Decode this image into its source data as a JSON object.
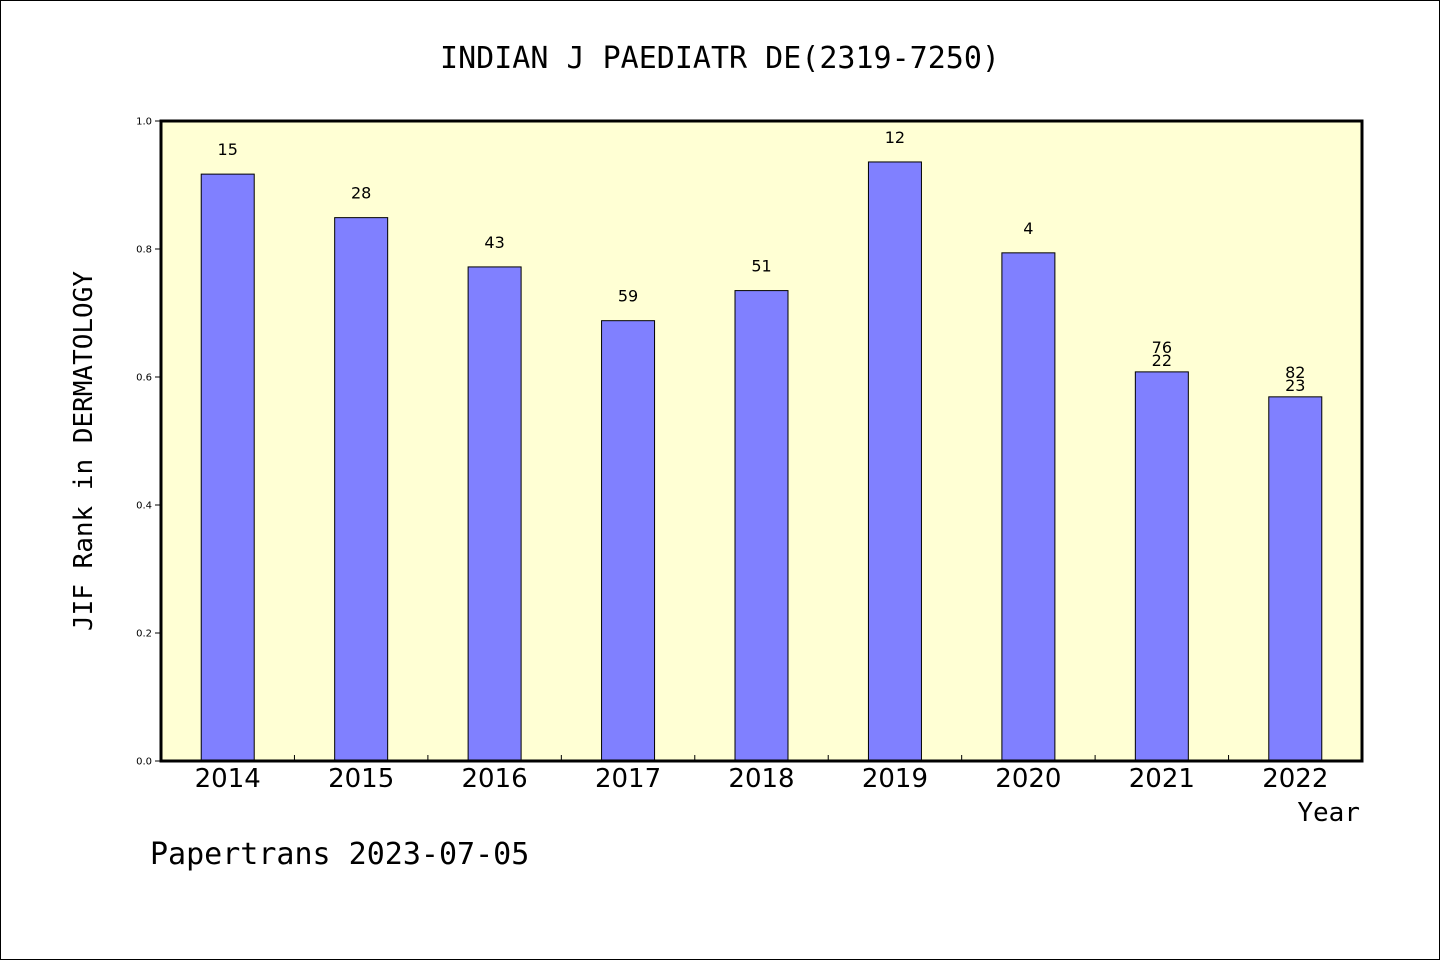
{
  "chart_data": {
    "type": "bar",
    "title": "INDIAN J PAEDIATR DE(2319-7250)",
    "xlabel": "Year",
    "ylabel": "JIF Rank in DERMATOLOGY",
    "ylim": [
      0,
      1.0
    ],
    "yticks": [
      "0.0",
      "0.2",
      "0.4",
      "0.6",
      "0.8",
      "1.0"
    ],
    "categories": [
      "2014",
      "2015",
      "2016",
      "2017",
      "2018",
      "2019",
      "2020",
      "2021",
      "2022"
    ],
    "values": [
      0.917,
      0.849,
      0.772,
      0.688,
      0.735,
      0.936,
      0.794,
      0.608,
      0.569
    ],
    "bar_labels": [
      [
        "15"
      ],
      [
        "28"
      ],
      [
        "43"
      ],
      [
        "59"
      ],
      [
        "51"
      ],
      [
        "12"
      ],
      [
        "4"
      ],
      [
        "76",
        "22"
      ],
      [
        "82",
        "23"
      ]
    ],
    "grid": false,
    "colors": {
      "plot_background": "#ffffd4",
      "bar_fill": "#8080ff",
      "bar_stroke": "#000000"
    }
  },
  "footer": {
    "text": "Papertrans 2023-07-05"
  }
}
